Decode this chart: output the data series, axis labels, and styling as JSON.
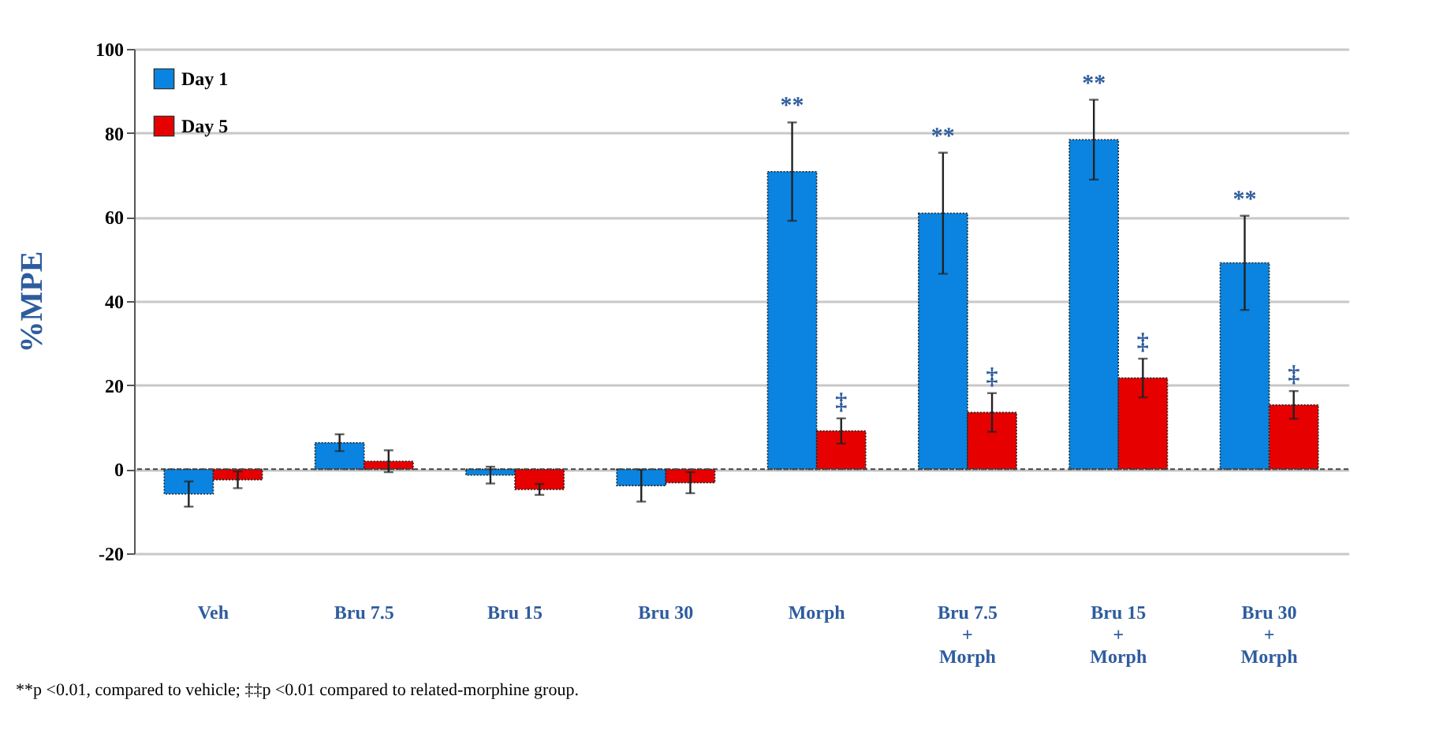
{
  "chart_data": {
    "type": "bar",
    "ylabel": "%MPE",
    "categories": [
      "Veh",
      "Bru 7.5",
      "Bru 15",
      "Bru 30",
      "Morph",
      "Bru 7.5\n+\nMorph",
      "Bru 15\n+\nMorph",
      "Bru 30\n+\nMorph"
    ],
    "series": [
      {
        "name": "Day 1",
        "color": "#0a84e0",
        "values": [
          -5.9,
          6.3,
          -1.4,
          -3.9,
          70.8,
          60.9,
          78.4,
          49.1
        ],
        "errors": [
          3,
          2,
          2,
          3.8,
          11.7,
          14.4,
          9.5,
          11.2
        ]
      },
      {
        "name": "Day 5",
        "color": "#e60000",
        "values": [
          -2.5,
          1.9,
          -4.8,
          -3.2,
          9.1,
          13.5,
          21.7,
          15.3
        ],
        "errors": [
          2,
          2.6,
          1.3,
          2.5,
          3,
          4.6,
          4.6,
          3.3
        ]
      }
    ],
    "ylim": [
      -20,
      100
    ],
    "yticks": [
      -20,
      0,
      20,
      40,
      60,
      80,
      100
    ],
    "grid": "y",
    "legend": "top left",
    "ref_lines": [
      {
        "axis": "y",
        "value": 0,
        "color": "#444444",
        "line_style": "dashed"
      }
    ],
    "annotations": [
      {
        "text": "**",
        "x": "Morph",
        "y": 70.8
      },
      {
        "text": "**",
        "x": "Bru 7.5\n+\nMorph",
        "y": 60.9
      },
      {
        "text": "**",
        "x": "Bru 15\n+\nMorph",
        "y": 78.4
      },
      {
        "text": "**",
        "x": "Bru 30\n+\nMorph",
        "y": 49.1
      },
      {
        "text": "‡",
        "x": "Morph",
        "y": 9.1
      },
      {
        "text": "‡",
        "x": "Bru 7.5\n+\nMorph",
        "y": 13.5
      },
      {
        "text": "‡",
        "x": "Bru 15\n+\nMorph",
        "y": 21.7
      },
      {
        "text": "‡",
        "x": "Bru 30\n+\nMorph",
        "y": 15.3
      },
      "**p <0.01, compared to vehicle; ‡‡p <0.01 compared to related-morphine group."
    ]
  }
}
